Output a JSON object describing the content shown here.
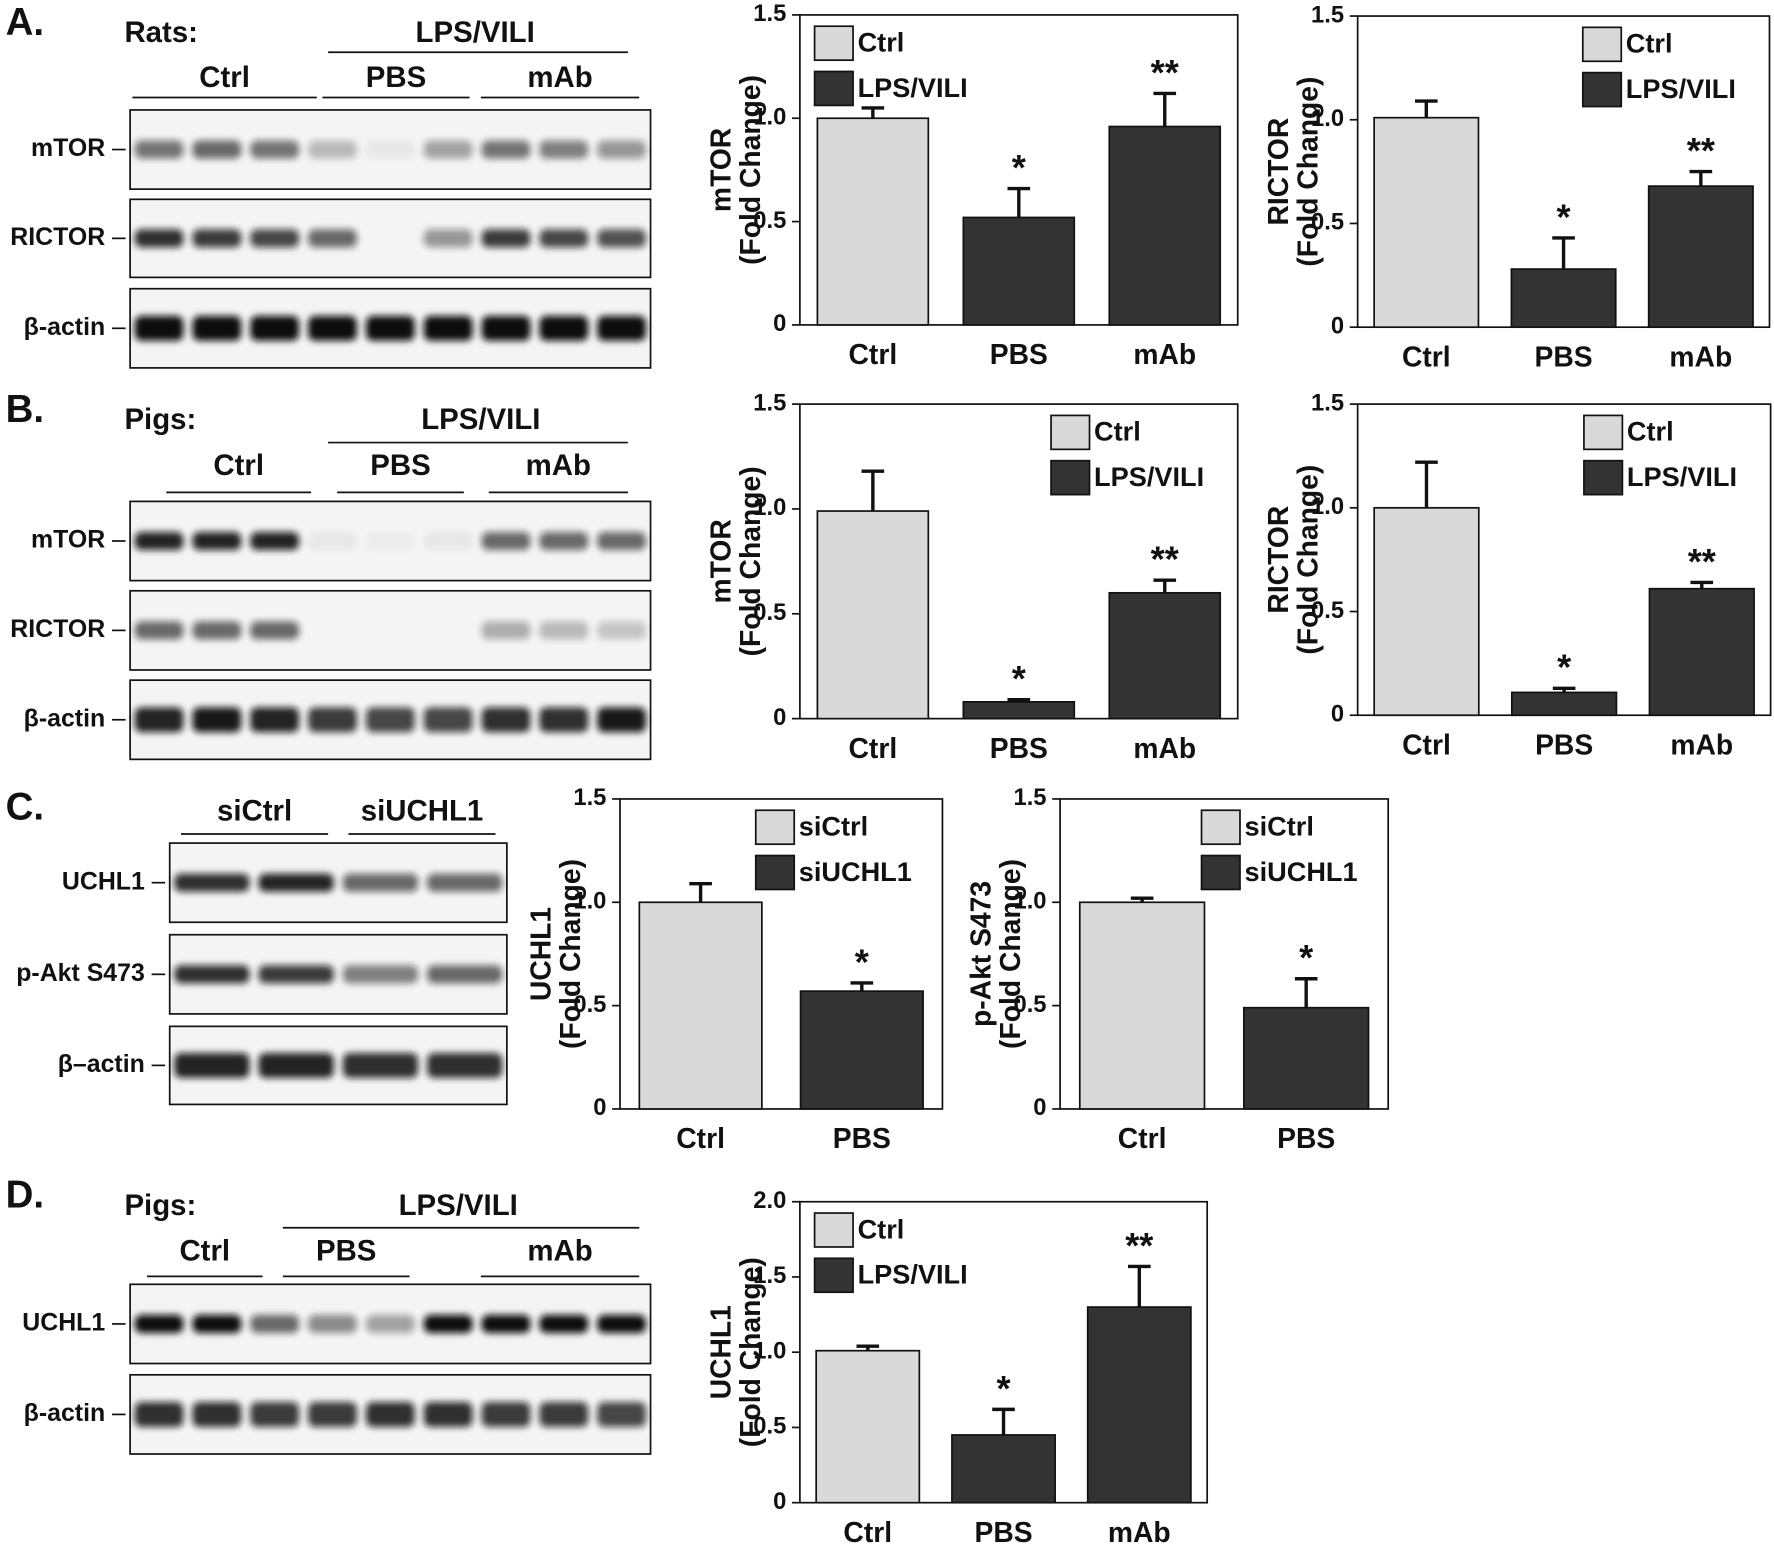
{
  "panels": [
    {
      "label": "A.",
      "species": "Rats:",
      "group": "LPS/VILI",
      "lanes": [
        "Ctrl",
        "PBS",
        "mAb"
      ],
      "rows": [
        "mTOR",
        "RICTOR",
        "β-actin"
      ]
    },
    {
      "label": "B.",
      "species": "Pigs:",
      "group": "LPS/VILI",
      "lanes": [
        "Ctrl",
        "PBS",
        "mAb"
      ],
      "rows": [
        "mTOR",
        "RICTOR",
        "β-actin"
      ]
    },
    {
      "label": "C.",
      "lanes": [
        "siCtrl",
        "siUCHL1"
      ],
      "rows": [
        "UCHL1",
        "p-Akt S473",
        "β–actin"
      ]
    },
    {
      "label": "D.",
      "species": "Pigs:",
      "group": "LPS/VILI",
      "lanes": [
        "Ctrl",
        "PBS",
        "mAb"
      ],
      "rows": [
        "UCHL1",
        "β-actin"
      ]
    }
  ],
  "chart_data": [
    {
      "type": "bar",
      "ylabel": [
        "mTOR",
        "(Fold Change)"
      ],
      "categories": [
        "Ctrl",
        "PBS",
        "mAb"
      ],
      "series": [
        {
          "name": "Ctrl",
          "color": "#d9d9d9",
          "values": [
            1.0,
            null,
            null
          ],
          "errors": [
            0.05,
            null,
            null
          ]
        },
        {
          "name": "LPS/VILI",
          "color": "#333333",
          "values": [
            null,
            0.52,
            0.96
          ],
          "errors": [
            null,
            0.14,
            0.16
          ]
        }
      ],
      "annotations": [
        null,
        "*",
        "**"
      ],
      "ylim": [
        0,
        1.5
      ],
      "yticks": [
        0,
        0.5,
        {
          "value": 1,
          "label": "1.0"
        },
        1.5
      ],
      "legend": "upper left"
    },
    {
      "type": "bar",
      "ylabel": [
        "RICTOR",
        "(Fold Change)"
      ],
      "categories": [
        "Ctrl",
        "PBS",
        "mAb"
      ],
      "series": [
        {
          "name": "Ctrl",
          "color": "#d9d9d9",
          "values": [
            1.01,
            null,
            null
          ],
          "errors": [
            0.08,
            null,
            null
          ]
        },
        {
          "name": "LPS/VILI",
          "color": "#333333",
          "values": [
            null,
            0.28,
            0.68
          ],
          "errors": [
            null,
            0.15,
            0.07
          ]
        }
      ],
      "annotations": [
        null,
        "*",
        "**"
      ],
      "ylim": [
        0,
        1.5
      ],
      "yticks": [
        0,
        0.5,
        {
          "value": 1,
          "label": "1.0"
        },
        1.5
      ],
      "legend": "upper right"
    },
    {
      "type": "bar",
      "ylabel": [
        "mTOR",
        "(Fold Change)"
      ],
      "categories": [
        "Ctrl",
        "PBS",
        "mAb"
      ],
      "series": [
        {
          "name": "Ctrl",
          "color": "#d9d9d9",
          "values": [
            0.99,
            null,
            null
          ],
          "errors": [
            0.19,
            null,
            null
          ]
        },
        {
          "name": "LPS/VILI",
          "color": "#333333",
          "values": [
            null,
            0.08,
            0.6
          ],
          "errors": [
            null,
            0.01,
            0.06
          ]
        }
      ],
      "annotations": [
        null,
        "*",
        "**"
      ],
      "ylim": [
        0,
        1.5
      ],
      "yticks": [
        0,
        0.5,
        {
          "value": 1,
          "label": "1.0"
        },
        1.5
      ],
      "legend": "upper right"
    },
    {
      "type": "bar",
      "ylabel": [
        "RICTOR",
        "(Fold Change)"
      ],
      "categories": [
        "Ctrl",
        "PBS",
        "mAb"
      ],
      "series": [
        {
          "name": "Ctrl",
          "color": "#d9d9d9",
          "values": [
            1.0,
            null,
            null
          ],
          "errors": [
            0.22,
            null,
            null
          ]
        },
        {
          "name": "LPS/VILI",
          "color": "#333333",
          "values": [
            null,
            0.11,
            0.61
          ],
          "errors": [
            null,
            0.02,
            0.03
          ]
        }
      ],
      "annotations": [
        null,
        "*",
        "**"
      ],
      "ylim": [
        0,
        1.5
      ],
      "yticks": [
        0,
        0.5,
        {
          "value": 1,
          "label": "1.0"
        },
        1.5
      ],
      "legend": "upper right"
    },
    {
      "type": "bar",
      "ylabel": [
        "UCHL1",
        "(Fold Change)"
      ],
      "categories": [
        "Ctrl",
        "PBS"
      ],
      "series": [
        {
          "name": "siCtrl",
          "color": "#d9d9d9",
          "values": [
            1.0,
            null
          ],
          "errors": [
            0.09,
            null
          ]
        },
        {
          "name": "siUCHL1",
          "color": "#333333",
          "values": [
            null,
            0.57
          ],
          "errors": [
            null,
            0.04
          ]
        }
      ],
      "annotations": [
        null,
        "*"
      ],
      "ylim": [
        0,
        1.5
      ],
      "yticks": [
        0,
        0.5,
        {
          "value": 1,
          "label": "1.0"
        },
        1.5
      ],
      "legend": "upper right"
    },
    {
      "type": "bar",
      "ylabel": [
        "p-Akt S473",
        "(Fold Change)"
      ],
      "categories": [
        "Ctrl",
        "PBS"
      ],
      "series": [
        {
          "name": "siCtrl",
          "color": "#d9d9d9",
          "values": [
            1.0,
            null
          ],
          "errors": [
            0.02,
            null
          ]
        },
        {
          "name": "siUCHL1",
          "color": "#333333",
          "values": [
            null,
            0.49
          ],
          "errors": [
            null,
            0.14
          ]
        }
      ],
      "annotations": [
        null,
        "*"
      ],
      "ylim": [
        0,
        1.5
      ],
      "yticks": [
        0,
        0.5,
        {
          "value": 1,
          "label": "1.0"
        },
        1.5
      ],
      "legend": "upper right"
    },
    {
      "type": "bar",
      "ylabel": [
        "UCHL1",
        "(Fold Change)"
      ],
      "categories": [
        "Ctrl",
        "PBS",
        "mAb"
      ],
      "series": [
        {
          "name": "Ctrl",
          "color": "#d9d9d9",
          "values": [
            1.01,
            null,
            null
          ],
          "errors": [
            0.03,
            null,
            null
          ]
        },
        {
          "name": "LPS/VILI",
          "color": "#333333",
          "values": [
            null,
            0.45,
            1.3
          ],
          "errors": [
            null,
            0.17,
            0.27
          ]
        }
      ],
      "annotations": [
        null,
        "*",
        "**"
      ],
      "ylim": [
        0,
        2
      ],
      "yticks": [
        0,
        0.5,
        {
          "value": 1,
          "label": "1.0"
        },
        1.5,
        {
          "value": 2,
          "label": "2.0"
        }
      ],
      "legend": "upper left"
    }
  ]
}
